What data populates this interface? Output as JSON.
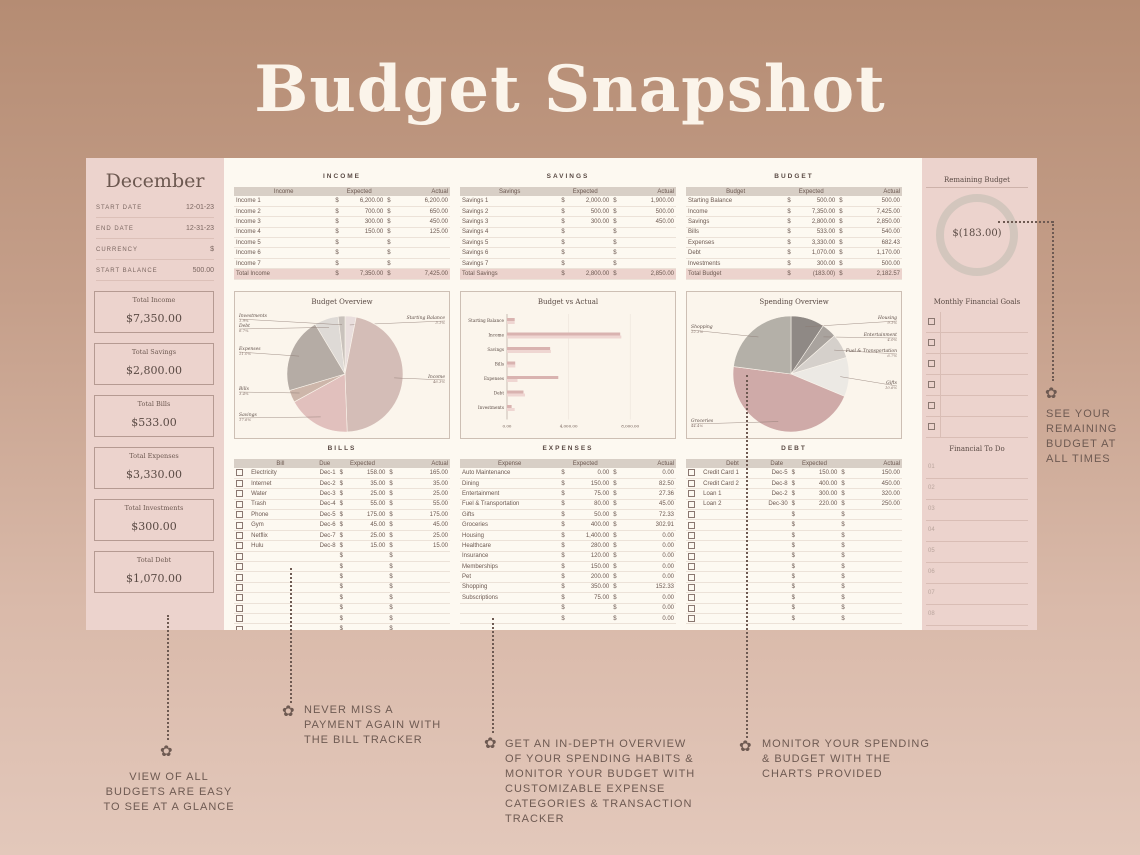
{
  "headline": "Budget Snapshot",
  "month": "December",
  "meta": [
    {
      "label": "START DATE",
      "value": "12-01-23"
    },
    {
      "label": "END DATE",
      "value": "12-31-23"
    },
    {
      "label": "CURRENCY",
      "value": "$"
    },
    {
      "label": "START BALANCE",
      "value": "500.00"
    }
  ],
  "totals": [
    {
      "label": "Total Income",
      "value": "$7,350.00"
    },
    {
      "label": "Total Savings",
      "value": "$2,800.00"
    },
    {
      "label": "Total Bills",
      "value": "$533.00"
    },
    {
      "label": "Total Expenses",
      "value": "$3,330.00"
    },
    {
      "label": "Total Investments",
      "value": "$300.00"
    },
    {
      "label": "Total Debt",
      "value": "$1,070.00"
    }
  ],
  "income": {
    "title": "INCOME",
    "headers": [
      "Income",
      "Expected",
      "Actual"
    ],
    "rows": [
      [
        "Income 1",
        "6,200.00",
        "6,200.00"
      ],
      [
        "Income 2",
        "700.00",
        "650.00"
      ],
      [
        "Income 3",
        "300.00",
        "450.00"
      ],
      [
        "Income 4",
        "150.00",
        "125.00"
      ],
      [
        "Income 5",
        "",
        ""
      ],
      [
        "Income 6",
        "",
        ""
      ],
      [
        "Income 7",
        "",
        ""
      ]
    ],
    "total": [
      "Total Income",
      "7,350.00",
      "7,425.00"
    ]
  },
  "savings": {
    "title": "SAVINGS",
    "headers": [
      "Savings",
      "Expected",
      "Actual"
    ],
    "rows": [
      [
        "Savings 1",
        "2,000.00",
        "1,900.00"
      ],
      [
        "Savings 2",
        "500.00",
        "500.00"
      ],
      [
        "Savings 3",
        "300.00",
        "450.00"
      ],
      [
        "Savings 4",
        "",
        ""
      ],
      [
        "Savings 5",
        "",
        ""
      ],
      [
        "Savings 6",
        "",
        ""
      ],
      [
        "Savings 7",
        "",
        ""
      ]
    ],
    "total": [
      "Total Savings",
      "2,800.00",
      "2,850.00"
    ]
  },
  "budget": {
    "title": "BUDGET",
    "headers": [
      "Budget",
      "Expected",
      "Actual"
    ],
    "rows": [
      [
        "Starting Balance",
        "500.00",
        "500.00"
      ],
      [
        "Income",
        "7,350.00",
        "7,425.00"
      ],
      [
        "Savings",
        "2,800.00",
        "2,850.00"
      ],
      [
        "Bills",
        "533.00",
        "540.00"
      ],
      [
        "Expenses",
        "3,330.00",
        "682.43"
      ],
      [
        "Debt",
        "1,070.00",
        "1,170.00"
      ],
      [
        "Investments",
        "300.00",
        "500.00"
      ]
    ],
    "total": [
      "Total Budget",
      "(183.00)",
      "2,182.57"
    ]
  },
  "currency_symbol": "$",
  "bills": {
    "title": "BILLS",
    "headers": [
      "Bill",
      "Due",
      "Expected",
      "Actual"
    ],
    "rows": [
      [
        "Electricity",
        "Dec-1",
        "158.00",
        "165.00"
      ],
      [
        "Internet",
        "Dec-2",
        "35.00",
        "35.00"
      ],
      [
        "Water",
        "Dec-3",
        "25.00",
        "25.00"
      ],
      [
        "Trash",
        "Dec-4",
        "55.00",
        "55.00"
      ],
      [
        "Phone",
        "Dec-5",
        "175.00",
        "175.00"
      ],
      [
        "Gym",
        "Dec-6",
        "45.00",
        "45.00"
      ],
      [
        "Netflix",
        "Dec-7",
        "25.00",
        "25.00"
      ],
      [
        "Hulu",
        "Dec-8",
        "15.00",
        "15.00"
      ]
    ],
    "empty_rows": 8
  },
  "expenses": {
    "title": "EXPENSES",
    "headers": [
      "Expense",
      "Expected",
      "Actual"
    ],
    "rows": [
      [
        "Auto Maintenance",
        "0.00",
        "0.00"
      ],
      [
        "Dining",
        "150.00",
        "82.50"
      ],
      [
        "Entertainment",
        "75.00",
        "27.36"
      ],
      [
        "Fuel & Transportation",
        "80.00",
        "45.00"
      ],
      [
        "Gifts",
        "50.00",
        "72.33"
      ],
      [
        "Groceries",
        "400.00",
        "302.91"
      ],
      [
        "Housing",
        "1,400.00",
        "0.00"
      ],
      [
        "Healthcare",
        "280.00",
        "0.00"
      ],
      [
        "Insurance",
        "120.00",
        "0.00"
      ],
      [
        "Memberships",
        "150.00",
        "0.00"
      ],
      [
        "Pet",
        "200.00",
        "0.00"
      ],
      [
        "Shopping",
        "350.00",
        "152.33"
      ],
      [
        "Subscriptions",
        "75.00",
        "0.00"
      ],
      [
        "",
        "",
        "0.00"
      ],
      [
        "",
        "",
        "0.00"
      ]
    ]
  },
  "debt": {
    "title": "DEBT",
    "headers": [
      "Debt",
      "Date",
      "Expected",
      "Actual"
    ],
    "rows": [
      [
        "Credit Card 1",
        "Dec-5",
        "150.00",
        "150.00"
      ],
      [
        "Credit Card 2",
        "Dec-8",
        "400.00",
        "450.00"
      ],
      [
        "Loan 1",
        "Dec-2",
        "300.00",
        "320.00"
      ],
      [
        "Loan 2",
        "Dec-30",
        "220.00",
        "250.00"
      ]
    ],
    "empty_rows": 11
  },
  "remaining": {
    "title": "Remaining Budget",
    "value": "$(183.00)"
  },
  "goals": {
    "title": "Monthly Financial Goals",
    "count": 6
  },
  "todo": {
    "title": "Financial To Do",
    "items": [
      "01",
      "02",
      "03",
      "04",
      "05",
      "06",
      "07",
      "08"
    ]
  },
  "chart_data": [
    {
      "type": "pie",
      "title": "Budget Overview",
      "labels": [
        "Starting Balance",
        "Income",
        "Savings",
        "Bills",
        "Expenses",
        "Debt",
        "Investments"
      ],
      "percent_labels": [
        "3.1%",
        "46.3%",
        "17.6%",
        "3.4%",
        "21.0%",
        "6.7%",
        "1.9%"
      ],
      "values": [
        3.1,
        46.3,
        17.6,
        3.4,
        21.0,
        6.7,
        1.9
      ],
      "colors": [
        "#e9dedd",
        "#d4bdb7",
        "#e1c0bd",
        "#cdb6aa",
        "#b5aca5",
        "#dedad6",
        "#c9c2bc"
      ]
    },
    {
      "type": "bar",
      "title": "Budget vs Actual",
      "categories": [
        "Starting Balance",
        "Income",
        "Savings",
        "Bills",
        "Expenses",
        "Debt",
        "Investments"
      ],
      "series": [
        {
          "values": [
            500,
            7350,
            2800,
            533,
            3330,
            1070,
            300
          ]
        },
        {
          "values": [
            500,
            7425,
            2850,
            540,
            682.43,
            1170,
            500
          ]
        }
      ],
      "xticks": [
        "0.00",
        "4,000.00",
        "8,000.00"
      ],
      "xlim": [
        0,
        10000
      ],
      "colors": [
        "#d9b3b0",
        "#efd6d2"
      ]
    },
    {
      "type": "pie",
      "title": "Spending Overview",
      "labels": [
        "Housing",
        "Entertainment",
        "Fuel & Transportation",
        "Gifts",
        "Groceries",
        "Shopping"
      ],
      "values": [
        9.1,
        4.0,
        6.7,
        10.6,
        44.4,
        22.3
      ],
      "percent_labels": [
        "9.1%",
        "4.0%",
        "6.7%",
        "10.6%",
        "44.4%",
        "22.3%"
      ],
      "colors": [
        "#8f8985",
        "#a9a39e",
        "#d5d0cb",
        "#ece9e4",
        "#cfaaa8",
        "#b4b0a8"
      ]
    }
  ],
  "annotations": [
    "SEE YOUR REMAINING BUDGET AT ALL TIMES",
    "VIEW OF ALL BUDGETS ARE EASY TO SEE AT A GLANCE",
    "NEVER MISS A PAYMENT AGAIN WITH THE BILL TRACKER",
    "GET AN IN-DEPTH OVERVIEW OF YOUR SPENDING HABITS & MONITOR YOUR BUDGET WITH CUSTOMIZABLE EXPENSE CATEGORIES & TRANSACTION TRACKER",
    "MONITOR YOUR SPENDING & BUDGET WITH THE CHARTS PROVIDED"
  ]
}
